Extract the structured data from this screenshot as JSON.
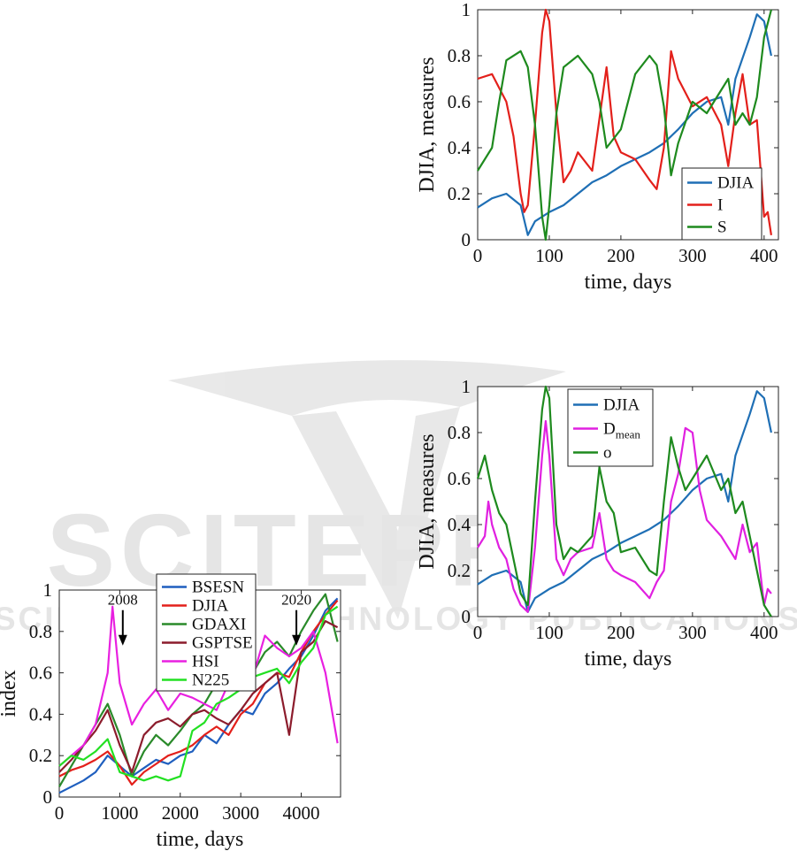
{
  "watermark": {
    "name": "SCITEPRESS",
    "tagline": "SCIENCE AND TECHNOLOGY PUBLICATIONS"
  },
  "chart_data": [
    {
      "id": "index",
      "type": "line",
      "xlabel": "time, days",
      "ylabel": "index",
      "xlim": [
        0,
        4650
      ],
      "ylim": [
        0,
        1
      ],
      "xticks": [
        0,
        1000,
        2000,
        3000,
        4000
      ],
      "yticks": [
        0,
        0.2,
        0.4,
        0.6,
        0.8,
        1
      ],
      "xtick_labels": [
        "0",
        "1000",
        "2000",
        "3000",
        "4000"
      ],
      "ytick_labels": [
        "0",
        "0.2",
        "0.4",
        "0.6",
        "0.8",
        "1"
      ],
      "legend_position": "top-center",
      "annotations": [
        {
          "text": "2008",
          "x": 1050,
          "y": 0.92
        },
        {
          "text": "2020",
          "x": 3920,
          "y": 0.92
        }
      ],
      "series": [
        {
          "name": "BSESN",
          "color": "#1f5fbf",
          "x": [
            0,
            200,
            400,
            600,
            800,
            1000,
            1200,
            1400,
            1600,
            1800,
            2000,
            2200,
            2400,
            2600,
            2800,
            3000,
            3200,
            3400,
            3600,
            3800,
            4000,
            4200,
            4400,
            4600
          ],
          "y": [
            0.02,
            0.05,
            0.08,
            0.12,
            0.2,
            0.15,
            0.1,
            0.14,
            0.18,
            0.16,
            0.2,
            0.22,
            0.3,
            0.26,
            0.35,
            0.42,
            0.4,
            0.5,
            0.55,
            0.62,
            0.68,
            0.78,
            0.9,
            0.96
          ]
        },
        {
          "name": "DJIA",
          "color": "#e3201b",
          "x": [
            0,
            200,
            400,
            600,
            800,
            1000,
            1200,
            1400,
            1600,
            1800,
            2000,
            2200,
            2400,
            2600,
            2800,
            3000,
            3200,
            3400,
            3600,
            3800,
            4000,
            4200,
            4400,
            4600
          ],
          "y": [
            0.1,
            0.13,
            0.15,
            0.18,
            0.22,
            0.15,
            0.06,
            0.12,
            0.16,
            0.2,
            0.22,
            0.25,
            0.3,
            0.34,
            0.3,
            0.4,
            0.45,
            0.55,
            0.6,
            0.58,
            0.7,
            0.8,
            0.88,
            0.95
          ]
        },
        {
          "name": "GDAXI",
          "color": "#2a8a2a",
          "x": [
            0,
            200,
            400,
            600,
            800,
            1000,
            1200,
            1400,
            1600,
            1800,
            2000,
            2200,
            2400,
            2600,
            2800,
            3000,
            3200,
            3400,
            3600,
            3800,
            4000,
            4200,
            4400,
            4600
          ],
          "y": [
            0.05,
            0.15,
            0.25,
            0.35,
            0.45,
            0.3,
            0.1,
            0.22,
            0.3,
            0.25,
            0.32,
            0.4,
            0.45,
            0.55,
            0.52,
            0.62,
            0.6,
            0.7,
            0.75,
            0.68,
            0.8,
            0.9,
            0.98,
            0.75
          ]
        },
        {
          "name": "GSPTSE",
          "color": "#8c1c2c",
          "x": [
            0,
            200,
            400,
            600,
            800,
            1000,
            1200,
            1400,
            1600,
            1800,
            2000,
            2200,
            2400,
            2600,
            2800,
            3000,
            3200,
            3400,
            3600,
            3800,
            4000,
            4200,
            4400,
            4600
          ],
          "y": [
            0.12,
            0.18,
            0.25,
            0.32,
            0.42,
            0.25,
            0.12,
            0.3,
            0.36,
            0.38,
            0.34,
            0.4,
            0.42,
            0.38,
            0.35,
            0.42,
            0.5,
            0.55,
            0.6,
            0.3,
            0.7,
            0.75,
            0.85,
            0.82
          ]
        },
        {
          "name": "HSI",
          "color": "#e820e0",
          "x": [
            0,
            200,
            400,
            600,
            800,
            880,
            1000,
            1200,
            1400,
            1600,
            1800,
            2000,
            2200,
            2400,
            2600,
            2800,
            3000,
            3200,
            3400,
            3600,
            3800,
            4000,
            4200,
            4400,
            4600
          ],
          "y": [
            0.15,
            0.2,
            0.25,
            0.35,
            0.6,
            0.92,
            0.55,
            0.35,
            0.45,
            0.52,
            0.42,
            0.5,
            0.48,
            0.45,
            0.42,
            0.55,
            0.6,
            0.58,
            0.78,
            0.72,
            0.68,
            0.72,
            0.8,
            0.6,
            0.26
          ]
        },
        {
          "name": "N225",
          "color": "#22e022",
          "x": [
            0,
            200,
            400,
            600,
            800,
            1000,
            1200,
            1400,
            1600,
            1800,
            2000,
            2200,
            2400,
            2600,
            2800,
            3000,
            3200,
            3400,
            3600,
            3800,
            4000,
            4200,
            4400,
            4600
          ],
          "y": [
            0.15,
            0.2,
            0.18,
            0.22,
            0.28,
            0.12,
            0.1,
            0.08,
            0.1,
            0.08,
            0.1,
            0.32,
            0.36,
            0.45,
            0.48,
            0.52,
            0.58,
            0.6,
            0.62,
            0.55,
            0.65,
            0.72,
            0.88,
            0.92
          ]
        }
      ]
    },
    {
      "id": "disc",
      "type": "line",
      "xlabel": "time, days",
      "ylabel": "DJIA, measures",
      "xlim": [
        0,
        420
      ],
      "ylim": [
        0,
        1
      ],
      "xticks": [
        0,
        100,
        200,
        300,
        400
      ],
      "yticks": [
        0,
        0.2,
        0.4,
        0.6,
        0.8,
        1
      ],
      "xtick_labels": [
        "0",
        "100",
        "200",
        "300",
        "400"
      ],
      "ytick_labels": [
        "0",
        "0.2",
        "0.4",
        "0.6",
        "0.8",
        "1"
      ],
      "legend_position": "bottom-right",
      "series": [
        {
          "name": "DJIA",
          "color": "#1f6fb5",
          "x": [
            0,
            20,
            40,
            60,
            70,
            80,
            100,
            120,
            140,
            160,
            180,
            200,
            220,
            240,
            260,
            280,
            300,
            320,
            340,
            350,
            360,
            380,
            390,
            400,
            410
          ],
          "y": [
            0.14,
            0.18,
            0.2,
            0.15,
            0.02,
            0.08,
            0.12,
            0.15,
            0.2,
            0.25,
            0.28,
            0.32,
            0.35,
            0.38,
            0.42,
            0.48,
            0.55,
            0.6,
            0.62,
            0.5,
            0.7,
            0.88,
            0.98,
            0.95,
            0.8
          ]
        },
        {
          "name": "I",
          "color": "#e3201b",
          "x": [
            0,
            20,
            40,
            50,
            60,
            65,
            70,
            80,
            90,
            95,
            100,
            110,
            120,
            130,
            140,
            160,
            180,
            190,
            200,
            220,
            240,
            250,
            260,
            270,
            280,
            300,
            320,
            340,
            350,
            360,
            370,
            380,
            390,
            400,
            405,
            410
          ],
          "y": [
            0.7,
            0.72,
            0.6,
            0.45,
            0.2,
            0.12,
            0.15,
            0.5,
            0.9,
            1.0,
            0.95,
            0.55,
            0.25,
            0.3,
            0.38,
            0.3,
            0.75,
            0.45,
            0.38,
            0.35,
            0.26,
            0.22,
            0.4,
            0.82,
            0.7,
            0.58,
            0.62,
            0.5,
            0.32,
            0.55,
            0.72,
            0.5,
            0.52,
            0.1,
            0.12,
            0.02
          ]
        },
        {
          "name": "S",
          "color": "#1e8a1e",
          "x": [
            0,
            20,
            30,
            40,
            60,
            70,
            80,
            90,
            95,
            100,
            110,
            120,
            140,
            160,
            170,
            180,
            200,
            220,
            240,
            250,
            260,
            270,
            280,
            300,
            320,
            340,
            350,
            360,
            370,
            380,
            390,
            400,
            410
          ],
          "y": [
            0.3,
            0.4,
            0.6,
            0.78,
            0.82,
            0.75,
            0.5,
            0.1,
            0.0,
            0.15,
            0.55,
            0.75,
            0.8,
            0.72,
            0.6,
            0.4,
            0.48,
            0.72,
            0.8,
            0.76,
            0.58,
            0.28,
            0.42,
            0.6,
            0.55,
            0.65,
            0.7,
            0.5,
            0.55,
            0.5,
            0.62,
            0.88,
            1.0
          ]
        }
      ]
    },
    {
      "id": "meas",
      "type": "line",
      "xlabel": "time, days",
      "ylabel": "DJIA, measures",
      "xlim": [
        0,
        420
      ],
      "ylim": [
        0,
        1
      ],
      "xticks": [
        0,
        100,
        200,
        300,
        400
      ],
      "yticks": [
        0,
        0.2,
        0.4,
        0.6,
        0.8,
        1
      ],
      "xtick_labels": [
        "0",
        "100",
        "200",
        "300",
        "400"
      ],
      "ytick_labels": [
        "0",
        "0.2",
        "0.4",
        "0.6",
        "0.8",
        "1"
      ],
      "legend_position": "top-center",
      "series": [
        {
          "name": "DJIA",
          "color": "#1f6fb5",
          "x": [
            0,
            20,
            40,
            60,
            70,
            80,
            100,
            120,
            140,
            160,
            180,
            200,
            220,
            240,
            260,
            280,
            300,
            320,
            340,
            350,
            360,
            380,
            390,
            400,
            410
          ],
          "y": [
            0.14,
            0.18,
            0.2,
            0.15,
            0.02,
            0.08,
            0.12,
            0.15,
            0.2,
            0.25,
            0.28,
            0.32,
            0.35,
            0.38,
            0.42,
            0.48,
            0.55,
            0.6,
            0.62,
            0.5,
            0.7,
            0.88,
            0.98,
            0.95,
            0.8
          ]
        },
        {
          "name": "D",
          "sub": "mean",
          "color": "#e020e0",
          "x": [
            0,
            10,
            15,
            20,
            30,
            40,
            50,
            60,
            70,
            80,
            90,
            95,
            100,
            110,
            120,
            130,
            140,
            160,
            170,
            180,
            190,
            200,
            220,
            240,
            250,
            260,
            270,
            280,
            290,
            300,
            310,
            320,
            340,
            350,
            360,
            370,
            380,
            390,
            400,
            405,
            410
          ],
          "y": [
            0.3,
            0.35,
            0.5,
            0.4,
            0.3,
            0.25,
            0.12,
            0.05,
            0.02,
            0.3,
            0.7,
            0.85,
            0.7,
            0.25,
            0.18,
            0.25,
            0.28,
            0.3,
            0.45,
            0.25,
            0.2,
            0.18,
            0.15,
            0.08,
            0.15,
            0.2,
            0.5,
            0.62,
            0.82,
            0.8,
            0.55,
            0.42,
            0.35,
            0.3,
            0.25,
            0.4,
            0.28,
            0.32,
            0.05,
            0.12,
            0.1
          ]
        },
        {
          "name": "o",
          "color": "#1e8a1e",
          "x": [
            0,
            10,
            20,
            30,
            40,
            50,
            60,
            70,
            80,
            90,
            95,
            100,
            110,
            120,
            130,
            140,
            160,
            170,
            180,
            190,
            200,
            220,
            240,
            250,
            260,
            270,
            280,
            290,
            300,
            320,
            340,
            350,
            360,
            370,
            380,
            390,
            400,
            410
          ],
          "y": [
            0.6,
            0.7,
            0.55,
            0.45,
            0.4,
            0.25,
            0.1,
            0.05,
            0.5,
            0.9,
            1.0,
            0.95,
            0.4,
            0.25,
            0.3,
            0.28,
            0.35,
            0.65,
            0.5,
            0.45,
            0.28,
            0.3,
            0.2,
            0.18,
            0.5,
            0.78,
            0.65,
            0.55,
            0.6,
            0.7,
            0.55,
            0.6,
            0.45,
            0.5,
            0.35,
            0.2,
            0.05,
            0.0
          ]
        }
      ]
    }
  ]
}
